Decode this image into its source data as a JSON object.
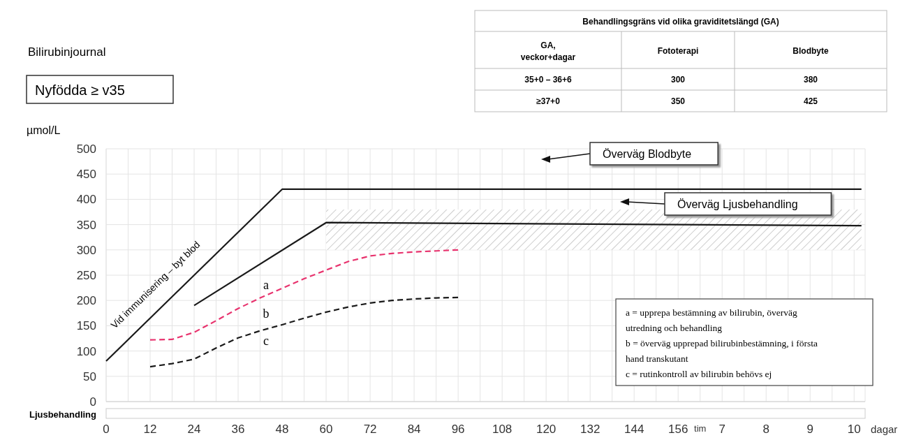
{
  "chart_data": [
    {
      "type": "line",
      "title": "Bilirubinjournal",
      "subtitle": "Nyfödda ≥ v35",
      "ylabel": "µmol/L",
      "xlabel": "tim",
      "x2label": "dagar",
      "x2lim": [
        -7,
        10.25
      ],
      "x2ticks": [
        7,
        8,
        9,
        10
      ],
      "xlim": [
        0,
        207
      ],
      "ylim": [
        0,
        500
      ],
      "yticks": [
        0,
        50,
        100,
        150,
        200,
        250,
        300,
        350,
        400,
        450,
        500
      ],
      "xticks": [
        0,
        {
          "value": 6,
          "label": null
        },
        12,
        {
          "value": 18,
          "label": null
        },
        24,
        {
          "value": 30,
          "label": null
        },
        36,
        {
          "value": 42,
          "label": null
        },
        48,
        {
          "value": 54,
          "label": null
        },
        60,
        {
          "value": 66,
          "label": null
        },
        72,
        {
          "value": 78,
          "label": null
        },
        84,
        {
          "value": 90,
          "label": null
        },
        96,
        {
          "value": 102,
          "label": null
        },
        108,
        {
          "value": 114,
          "label": null
        },
        120,
        {
          "value": 126,
          "label": null
        },
        132,
        {
          "value": 138,
          "label": null
        },
        144,
        {
          "value": 150,
          "label": null
        },
        156,
        {
          "value": 162,
          "label": null
        },
        {
          "value": 168,
          "label": null
        },
        {
          "value": 174,
          "label": null
        },
        {
          "value": 180,
          "label": null
        },
        {
          "value": 186,
          "label": null
        },
        {
          "value": 192,
          "label": null
        },
        {
          "value": 198,
          "label": null
        },
        {
          "value": 204,
          "label": null
        }
      ],
      "grid": true,
      "series": [
        {
          "color": "#1a1a1a",
          "line_style": "solid",
          "x": [
            0,
            48,
            206
          ],
          "values": [
            80,
            420,
            420
          ]
        },
        {
          "color": "#1a1a1a",
          "line_style": "solid",
          "x": [
            24,
            60,
            206
          ],
          "values": [
            190,
            354,
            348
          ],
          "lower": [
            null,
            300,
            300
          ],
          "upper": [
            null,
            380,
            380
          ]
        },
        {
          "color": "#e8336e",
          "line_style": "dashed",
          "x": [
            12,
            18,
            24,
            30,
            36,
            42,
            48,
            54,
            60,
            66,
            72,
            78,
            84,
            90,
            96
          ],
          "values": [
            122,
            123,
            137,
            160,
            184,
            205,
            224,
            243,
            260,
            277,
            288,
            293,
            296,
            298,
            300
          ]
        },
        {
          "color": "#1a1a1a",
          "line_style": "dashed",
          "x": [
            12,
            18,
            24,
            30,
            36,
            42,
            48,
            54,
            60,
            66,
            72,
            78,
            84,
            90,
            96
          ],
          "values": [
            69,
            75,
            84,
            106,
            126,
            140,
            152,
            165,
            177,
            187,
            195,
            200,
            203,
            205,
            206
          ]
        }
      ],
      "annotations": [
        "Vid immunisering – byt blod",
        "a",
        "b",
        "c",
        "Överväg Blodbyte",
        "Överväg Ljusbehandling",
        "Ljusbehandling",
        "a = upprepa bestämning av bilirubin, överväg utredning och behandling",
        "b = överväg upprepad bilirubinbestämning, i första hand transkutant",
        "c = rutinkontroll av bilirubin behövs ej"
      ]
    },
    {
      "type": "other",
      "title": "Behandlingsgräns vid olika graviditetslängd (GA)",
      "categories": [
        "GA, veckor+dagar",
        "Fototerapi",
        "Blodbyte"
      ],
      "cell_labels": [
        [
          "35+0 – 36+6",
          "300",
          "380"
        ],
        [
          "≥37+0",
          "350",
          "425"
        ]
      ]
    }
  ]
}
